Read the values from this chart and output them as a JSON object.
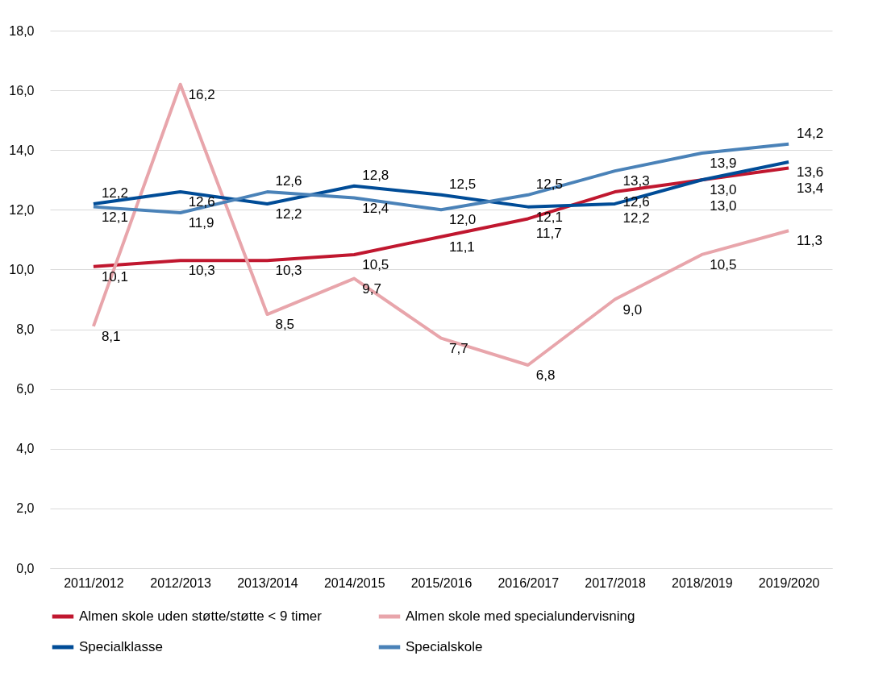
{
  "chart_data": {
    "type": "line",
    "categories": [
      "2011/2012",
      "2012/2013",
      "2013/2014",
      "2014/2015",
      "2015/2016",
      "2016/2017",
      "2017/2018",
      "2018/2019",
      "2019/2020"
    ],
    "series": [
      {
        "name": "Almen skole uden støtte/støtte < 9 timer",
        "color": "#c0172f",
        "values": [
          10.1,
          10.3,
          10.3,
          10.5,
          11.1,
          11.7,
          12.6,
          13.0,
          13.4
        ],
        "value_labels": [
          "10,1",
          "10,3",
          "10,3",
          "10,5",
          "11,1",
          "11,7",
          "12,6",
          "13,0",
          "13,4"
        ]
      },
      {
        "name": "Almen skole med specialundervisning",
        "color": "#e8a5ab",
        "values": [
          8.1,
          16.2,
          8.5,
          9.7,
          7.7,
          6.8,
          9.0,
          10.5,
          11.3
        ],
        "value_labels": [
          "8,1",
          "16,2",
          "8,5",
          "9,7",
          "7,7",
          "6,8",
          "9,0",
          "10,5",
          "11,3"
        ]
      },
      {
        "name": "Specialklasse",
        "color": "#004c97",
        "values": [
          12.2,
          12.6,
          12.2,
          12.8,
          12.5,
          12.1,
          12.2,
          13.0,
          13.6
        ],
        "value_labels": [
          "12,2",
          "12,6",
          "12,2",
          "12,8",
          "12,5",
          "12,1",
          "12,2",
          "13,0",
          "13,6"
        ]
      },
      {
        "name": "Specialskole",
        "color": "#4a82b8",
        "values": [
          12.1,
          11.9,
          12.6,
          12.4,
          12.0,
          12.5,
          13.3,
          13.9,
          14.2
        ],
        "value_labels": [
          "12,1",
          "11,9",
          "12,6",
          "12,4",
          "12,0",
          "12,5",
          "13,3",
          "13,9",
          "14,2"
        ]
      }
    ],
    "ylim": [
      0,
      18
    ],
    "yticks": [
      {
        "value": 0,
        "label": "0,0"
      },
      {
        "value": 2,
        "label": "2,0"
      },
      {
        "value": 4,
        "label": "4,0"
      },
      {
        "value": 6,
        "label": "6,0"
      },
      {
        "value": 8,
        "label": "8,0"
      },
      {
        "value": 10,
        "label": "10,0"
      },
      {
        "value": 12,
        "label": "12,0"
      },
      {
        "value": 14,
        "label": "14,0"
      },
      {
        "value": 16,
        "label": "16,0"
      },
      {
        "value": 18,
        "label": "18,0"
      }
    ],
    "grid": "y",
    "legend": "bottom",
    "marker": "none",
    "line_style": "solid"
  }
}
